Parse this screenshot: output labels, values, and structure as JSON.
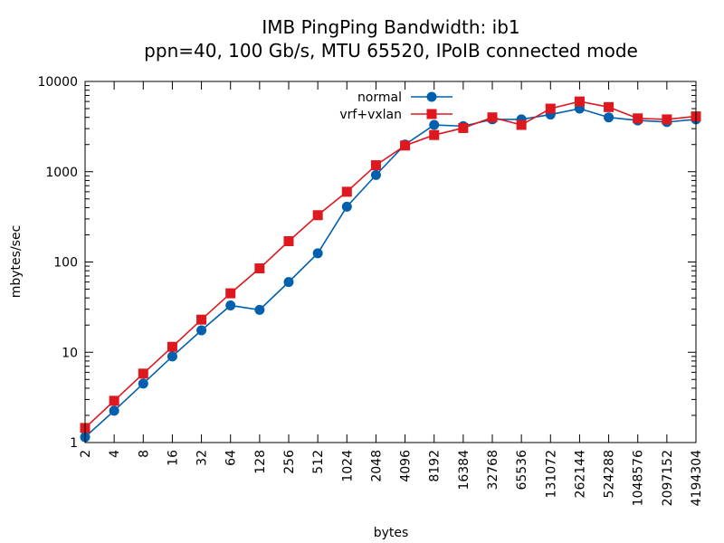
{
  "chart_data": {
    "type": "line",
    "title_line1": "IMB PingPing Bandwidth: ib1",
    "title_line2": "ppn=40, 100 Gb/s, MTU 65520, IPoIB connected mode",
    "xlabel": "bytes",
    "ylabel": "mbytes/sec",
    "x_scale": "log",
    "y_scale": "log",
    "xlim": [
      2,
      4194304
    ],
    "ylim": [
      1,
      10000
    ],
    "grid": false,
    "legend_position": "top-center",
    "x_ticks": [
      "2",
      "4",
      "8",
      "16",
      "32",
      "64",
      "128",
      "256",
      "512",
      "1024",
      "2048",
      "4096",
      "8192",
      "16384",
      "32768",
      "65536",
      "131072",
      "262144",
      "524288",
      "1048576",
      "2097152",
      "4194304"
    ],
    "y_ticks": [
      "1",
      "10",
      "100",
      "1000",
      "10000"
    ],
    "x": [
      2,
      4,
      8,
      16,
      32,
      64,
      128,
      256,
      512,
      1024,
      2048,
      4096,
      8192,
      16384,
      32768,
      65536,
      131072,
      262144,
      524288,
      1048576,
      2097152,
      4194304
    ],
    "series": [
      {
        "name": "normal",
        "color": "#0060ad",
        "marker": "circle",
        "values": [
          1.15,
          2.25,
          4.5,
          9.0,
          17.5,
          33,
          29.5,
          60,
          125,
          410,
          920,
          2000,
          3300,
          3200,
          3800,
          3800,
          4300,
          5000,
          4000,
          3700,
          3550,
          3800
        ]
      },
      {
        "name": "vrf+vxlan",
        "color": "#dd181f",
        "marker": "square",
        "values": [
          1.45,
          2.9,
          5.8,
          11.5,
          23,
          45,
          85,
          170,
          330,
          600,
          1180,
          1950,
          2550,
          3050,
          4000,
          3300,
          5000,
          6000,
          5200,
          3900,
          3800,
          4100
        ]
      }
    ]
  }
}
